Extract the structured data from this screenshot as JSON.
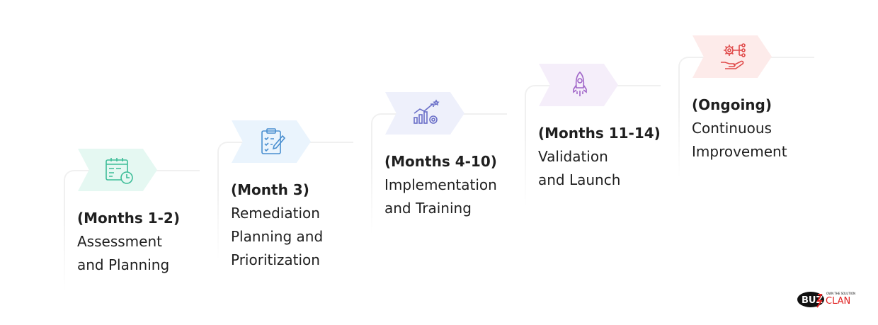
{
  "steps": [
    {
      "period": "(Months 1-2)",
      "lines": [
        "Assessment",
        "and Planning"
      ],
      "icon": "calendar-clock-icon",
      "bg": "#e5f8f2",
      "color": "#3dbd98"
    },
    {
      "period": "(Month 3)",
      "lines": [
        "Remediation",
        "Planning and",
        "Prioritization"
      ],
      "icon": "clipboard-checklist-icon",
      "bg": "#eaf4fd",
      "color": "#4a8fd0"
    },
    {
      "period": "(Months 4-10)",
      "lines": [
        "Implementation",
        "and Training"
      ],
      "icon": "growth-chart-gear-icon",
      "bg": "#eef0fb",
      "color": "#6a6fc8"
    },
    {
      "period": "(Months 11-14)",
      "lines": [
        "Validation",
        "and Launch"
      ],
      "icon": "rocket-icon",
      "bg": "#f5eefa",
      "color": "#a065c8"
    },
    {
      "period": "(Ongoing)",
      "lines": [
        "Continuous",
        "Improvement"
      ],
      "icon": "gear-hand-icon",
      "bg": "#fdebea",
      "color": "#e04a4a"
    }
  ],
  "logo": {
    "text": "BUZZ CLAN",
    "tagline": "OWN THE SOLUTION",
    "colors": {
      "dark": "#111111",
      "accent": "#e02020"
    }
  }
}
